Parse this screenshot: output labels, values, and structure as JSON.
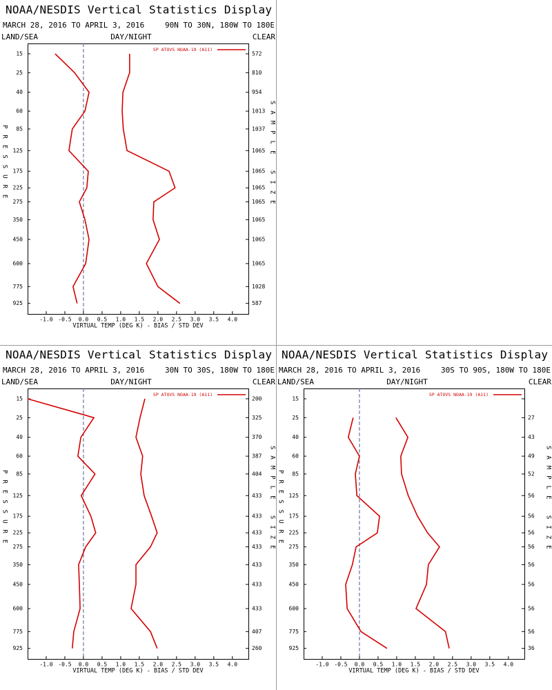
{
  "chart_data": [
    {
      "type": "line",
      "title": "NOAA/NESDIS Vertical Statistics Display",
      "subtitle": "MARCH 28, 2016 TO APRIL 3, 2016",
      "region": "90N TO 30N, 180W TO 180E",
      "left_label": "LAND/SEA",
      "center_label": "DAY/NIGHT",
      "right_label": "CLEAR",
      "xlabel": "VIRTUAL TEMP (DEG K) - BIAS / STD DEV",
      "ylabel": "PRESSURE",
      "y2label": "SAMPLE SIZE",
      "y": [
        15,
        25,
        40,
        60,
        85,
        125,
        175,
        225,
        275,
        350,
        450,
        600,
        775,
        925
      ],
      "ylim": [
        11,
        1030
      ],
      "xlim": [
        -1.5,
        4.43
      ],
      "xticks": [
        {
          "value": -1,
          "label": "-1.0"
        },
        -0.5,
        {
          "value": 0,
          "label": "0.0"
        },
        0.5,
        {
          "value": 1,
          "label": "1.0"
        },
        1.5,
        {
          "value": 2,
          "label": "2.0"
        },
        2.5,
        {
          "value": 3,
          "label": "3.0"
        },
        3.5,
        {
          "value": 4,
          "label": "4.0"
        }
      ],
      "sample_size": [
        572,
        810,
        954,
        1013,
        1037,
        1065,
        1065,
        1065,
        1065,
        1065,
        1065,
        1065,
        1028,
        587
      ],
      "series": [
        {
          "name": "SP ATOVS NOAA-19 (A11)",
          "color": "#d40000",
          "bias": [
            -0.76,
            -0.24,
            0.15,
            0.04,
            -0.3,
            -0.39,
            0.13,
            0.09,
            -0.11,
            0.04,
            0.15,
            0.06,
            -0.28,
            -0.17
          ],
          "std_dev": [
            1.24,
            1.24,
            1.06,
            1.04,
            1.07,
            1.17,
            2.3,
            2.46,
            1.89,
            1.87,
            2.04,
            1.69,
            2.0,
            2.59
          ]
        }
      ]
    },
    {
      "type": "line",
      "title": "NOAA/NESDIS Vertical Statistics Display",
      "subtitle": "MARCH 28, 2016 TO APRIL 3, 2016",
      "region": "30N TO 30S, 180W TO 180E",
      "left_label": "LAND/SEA",
      "center_label": "DAY/NIGHT",
      "right_label": "CLEAR",
      "xlabel": "VIRTUAL TEMP (DEG K) - BIAS / STD DEV",
      "ylabel": "PRESSURE",
      "y2label": "SAMPLE SIZE",
      "y": [
        15,
        25,
        40,
        60,
        85,
        125,
        175,
        225,
        275,
        350,
        450,
        600,
        775,
        925
      ],
      "ylim": [
        11,
        1030
      ],
      "xlim": [
        -1.5,
        4.43
      ],
      "xticks": [
        {
          "value": -1,
          "label": "-1.0"
        },
        -0.5,
        {
          "value": 0,
          "label": "0.0"
        },
        0.5,
        {
          "value": 1,
          "label": "1.0"
        },
        1.5,
        {
          "value": 2,
          "label": "2.0"
        },
        2.5,
        {
          "value": 3,
          "label": "3.0"
        },
        3.5,
        {
          "value": 4,
          "label": "4.0"
        }
      ],
      "sample_size": [
        200,
        325,
        370,
        387,
        404,
        433,
        433,
        433,
        433,
        433,
        433,
        433,
        407,
        260
      ],
      "series": [
        {
          "name": "SP ATOVS NOAA-19 (A11)",
          "color": "#d40000",
          "bias": [
            -1.5,
            0.28,
            -0.07,
            -0.15,
            0.31,
            -0.06,
            0.2,
            0.33,
            0.06,
            -0.13,
            -0.11,
            -0.09,
            -0.26,
            -0.3
          ],
          "std_dev": [
            1.65,
            1.52,
            1.41,
            1.59,
            1.54,
            1.63,
            1.83,
            1.98,
            1.8,
            1.41,
            1.41,
            1.28,
            1.8,
            1.98
          ]
        }
      ]
    },
    {
      "type": "line",
      "title": "NOAA/NESDIS Vertical Statistics Display",
      "subtitle": "MARCH 28, 2016 TO APRIL 3, 2016",
      "region": "30S TO 90S, 180W TO 180E",
      "left_label": "LAND/SEA",
      "center_label": "DAY/NIGHT",
      "right_label": "CLEAR",
      "xlabel": "VIRTUAL TEMP (DEG K) - BIAS / STD DEV",
      "ylabel": "PRESSURE",
      "y2label": "SAMPLE SIZE",
      "y": [
        15,
        25,
        40,
        60,
        85,
        125,
        175,
        225,
        275,
        350,
        450,
        600,
        775,
        925
      ],
      "ylim": [
        11,
        1030
      ],
      "xlim": [
        -1.5,
        4.43
      ],
      "xticks": [
        {
          "value": -1,
          "label": "-1.0"
        },
        -0.5,
        {
          "value": 0,
          "label": "0.0"
        },
        0.5,
        {
          "value": 1,
          "label": "1.0"
        },
        1.5,
        {
          "value": 2,
          "label": "2.0"
        },
        2.5,
        {
          "value": 3,
          "label": "3.0"
        },
        3.5,
        {
          "value": 4,
          "label": "4.0"
        }
      ],
      "sample_size": [
        null,
        27,
        43,
        49,
        52,
        56,
        56,
        56,
        56,
        56,
        56,
        56,
        56,
        36
      ],
      "series": [
        {
          "name": "SP ATOVS NOAA-19 (A11)",
          "color": "#d40000",
          "bias": [
            null,
            -0.17,
            -0.3,
            0.0,
            -0.11,
            -0.07,
            0.54,
            0.48,
            -0.09,
            -0.19,
            -0.37,
            -0.33,
            0.04,
            0.74
          ],
          "std_dev": [
            null,
            0.98,
            1.3,
            1.11,
            1.13,
            1.31,
            1.56,
            1.83,
            2.15,
            1.85,
            1.8,
            1.52,
            2.31,
            2.41
          ]
        }
      ]
    }
  ]
}
